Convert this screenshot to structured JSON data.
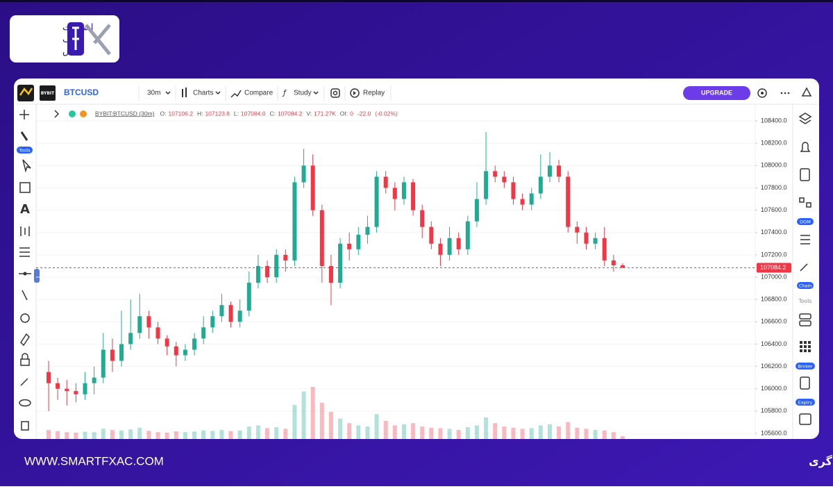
{
  "brand": {
    "logo_lines": [
      "اسمارت",
      "اف",
      "ایکس"
    ]
  },
  "toolbar": {
    "exchange": "BYBIT",
    "symbol": "BTCUSD",
    "interval": "30m",
    "charts": "Charts",
    "compare": "Compare",
    "study": "Study",
    "replay": "Replay",
    "upgrade": "UPGRADE"
  },
  "left_tools": {
    "label": "Tools"
  },
  "sidebar": {
    "labels": [
      "DOM",
      "Chain",
      "Tools",
      "Broker",
      "Expiry"
    ]
  },
  "footer": {
    "url": "WWW.SMARTFXAC.COM",
    "slogan": "اسمــارت اف ایکــس، همراه هوشمند شما در مسیر معامله‌گری"
  },
  "chart_data": {
    "type": "candlestick",
    "legend": {
      "symbol": "BYBIT:BTCUSD (30m)",
      "items": [
        {
          "key": "O:",
          "value": 107106.2
        },
        {
          "key": "H:",
          "value": 107123.8
        },
        {
          "key": "L:",
          "value": {
            "value": 107084,
            "label": "107084.0"
          }
        },
        {
          "key": "C:",
          "value": 107084.2
        },
        {
          "key": "V:",
          "value": {
            "value": 171270,
            "label": "171.27K"
          }
        },
        {
          "key": "OI:",
          "value": 0
        },
        {
          "key": "",
          "value": {
            "value": -22,
            "label": "-22.0"
          }
        },
        {
          "key": "",
          "value": {
            "value": -0.02,
            "label": "(-0.02%)"
          }
        }
      ]
    },
    "up_color": "#22ab94",
    "down_color": "#f23645",
    "last_price": 107084.2,
    "open": [
      106150,
      106050,
      106000,
      105980,
      105950,
      106050,
      106100,
      106350,
      106250,
      106400,
      106500,
      106650,
      106550,
      106450,
      106380,
      106300,
      106350,
      106450,
      106550,
      106650,
      106750,
      106600,
      106700,
      106950,
      107100,
      107000,
      107200,
      107150,
      107850,
      108000,
      107600,
      107100,
      106950,
      107300,
      107250,
      107380,
      107450,
      107900,
      107800,
      107700,
      107850,
      107600,
      107450,
      107300,
      107200,
      107350,
      107250,
      107500,
      107700,
      107950,
      107900,
      107850,
      107700,
      107650,
      107750,
      107900,
      108000,
      107900,
      107450,
      107400,
      107300,
      107350,
      107150,
      107106.2
    ],
    "high": [
      106250,
      106100,
      106080,
      106050,
      106150,
      106200,
      106500,
      106450,
      106700,
      106800,
      106850,
      106700,
      106600,
      106480,
      106420,
      106400,
      106500,
      106650,
      106700,
      106850,
      106780,
      106800,
      107050,
      107200,
      107150,
      107250,
      107250,
      107900,
      108150,
      108100,
      107650,
      107200,
      107350,
      107400,
      107450,
      107550,
      107950,
      107950,
      107850,
      107900,
      107880,
      107650,
      107500,
      107350,
      107450,
      107400,
      107550,
      107850,
      108300,
      108000,
      107950,
      107900,
      107750,
      107800,
      108100,
      108120,
      108050,
      107950,
      107500,
      107450,
      107400,
      107450,
      107200,
      107123.8
    ],
    "low": [
      105800,
      105900,
      105850,
      105880,
      105900,
      105950,
      106050,
      106150,
      106200,
      106350,
      106450,
      106450,
      106400,
      106300,
      106200,
      106250,
      106300,
      106400,
      106500,
      106600,
      106550,
      106550,
      106650,
      106900,
      106950,
      106950,
      107050,
      107100,
      107800,
      107550,
      106950,
      106750,
      106900,
      107150,
      107200,
      107300,
      107400,
      107750,
      107600,
      107650,
      107550,
      107350,
      107250,
      107100,
      107150,
      107200,
      107200,
      107450,
      107650,
      107850,
      107800,
      107650,
      107600,
      107600,
      107700,
      107850,
      107850,
      107400,
      107300,
      107250,
      107250,
      107100,
      107050,
      107084
    ],
    "close": [
      106050,
      106000,
      105980,
      105950,
      106050,
      106100,
      106350,
      106250,
      106400,
      106500,
      106650,
      106550,
      106450,
      106380,
      106300,
      106350,
      106450,
      106550,
      106650,
      106750,
      106600,
      106700,
      106950,
      107100,
      107000,
      107200,
      107150,
      107850,
      108000,
      107600,
      107100,
      106950,
      107300,
      107250,
      107380,
      107450,
      107900,
      107800,
      107700,
      107850,
      107600,
      107450,
      107300,
      107200,
      107350,
      107250,
      107500,
      107700,
      107950,
      107900,
      107850,
      107700,
      107650,
      107750,
      107900,
      108000,
      107900,
      107450,
      107400,
      107300,
      107350,
      107150,
      107106.2,
      107084.2
    ],
    "volume": [
      40,
      35,
      30,
      28,
      32,
      30,
      45,
      40,
      38,
      42,
      50,
      36,
      30,
      28,
      34,
      30,
      33,
      38,
      36,
      40,
      35,
      38,
      55,
      60,
      48,
      52,
      45,
      150,
      210,
      230,
      160,
      120,
      90,
      70,
      60,
      55,
      110,
      80,
      60,
      65,
      70,
      55,
      50,
      48,
      45,
      40,
      52,
      60,
      95,
      70,
      55,
      50,
      45,
      48,
      60,
      65,
      55,
      75,
      50,
      45,
      40,
      38,
      30,
      12
    ],
    "ylim": [
      105550,
      108500
    ],
    "yticks": [
      {
        "value": 105600,
        "label": "105600.0"
      },
      {
        "value": 105800,
        "label": "105800.0"
      },
      {
        "value": 106000,
        "label": "106000.0"
      },
      {
        "value": 106200,
        "label": "106200.0"
      },
      {
        "value": 106400,
        "label": "106400.0"
      },
      {
        "value": 106600,
        "label": "106600.0"
      },
      {
        "value": 106800,
        "label": "106800.0"
      },
      {
        "value": 107000,
        "label": "107000.0"
      },
      {
        "value": 107200,
        "label": "107200.0"
      },
      {
        "value": 107400,
        "label": "107400.0"
      },
      {
        "value": 107600,
        "label": "107600.0"
      },
      {
        "value": 107800,
        "label": "107800.0"
      },
      {
        "value": 108000,
        "label": "108000.0"
      },
      {
        "value": 108200,
        "label": "108200.0"
      },
      {
        "value": 108400,
        "label": "108400.0"
      }
    ],
    "grid": true
  }
}
